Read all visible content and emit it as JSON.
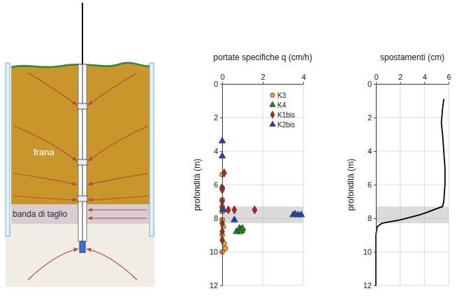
{
  "diagram": {
    "landslide_label": "frana",
    "shear_band_label": "banda di taglio"
  },
  "chart_data": [
    {
      "type": "scatter",
      "x_label": "portate specifiche q (cm/h)",
      "y_label": "profondità (m)",
      "xlim": [
        0,
        4
      ],
      "xticks": [
        0,
        2,
        4
      ],
      "ylim": [
        0,
        12
      ],
      "yticks": [
        0,
        2,
        4,
        6,
        8,
        10,
        12
      ],
      "grid": true,
      "legend": "top-right",
      "shear_band": [
        7.3,
        8.3
      ],
      "series": [
        {
          "name": "K3",
          "color": "#f0a030",
          "marker": "circle",
          "x": [
            0,
            0,
            0,
            0,
            0,
            0,
            0.05,
            0,
            0.1,
            0.15,
            0,
            0.8,
            0.9,
            0.95,
            1.0
          ],
          "y": [
            5.4,
            6.2,
            6.9,
            7.3,
            7.6,
            8.1,
            8.5,
            9.0,
            9.5,
            9.8,
            10.0,
            8.8,
            8.6,
            8.8,
            8.7
          ]
        },
        {
          "name": "K4",
          "color": "#1e8a1e",
          "marker": "triangle",
          "x": [
            0.7,
            0.85,
            0.9,
            0.95,
            1.0
          ],
          "y": [
            8.8,
            8.6,
            8.7,
            8.75,
            8.6
          ]
        },
        {
          "name": "K1bis",
          "color": "#c0201a",
          "marker": "diamond",
          "x": [
            0.1,
            0,
            0,
            0,
            0,
            0.3,
            0.6,
            1.6,
            0,
            0,
            0
          ],
          "y": [
            5.3,
            6.2,
            6.3,
            7.0,
            7.4,
            7.5,
            7.5,
            7.5,
            8.3,
            8.8,
            9.3
          ]
        },
        {
          "name": "K2bis",
          "color": "#2040c0",
          "marker": "triangle",
          "x": [
            0,
            0,
            0.05,
            0.6,
            3.5,
            3.6,
            3.75,
            3.9
          ],
          "y": [
            3.4,
            4.3,
            7.5,
            8.1,
            7.8,
            7.75,
            7.8,
            7.8
          ]
        }
      ]
    },
    {
      "type": "line",
      "x_label": "spostamenti (cm)",
      "y_label": "profondità (m)",
      "xlim": [
        0,
        6
      ],
      "xticks": [
        0,
        2,
        4,
        6
      ],
      "ylim": [
        0,
        12
      ],
      "yticks": [
        0,
        2,
        4,
        6,
        8,
        10,
        12
      ],
      "grid": true,
      "shear_band": [
        7.3,
        8.3
      ],
      "color": "#000000",
      "x": [
        5.6,
        5.5,
        5.4,
        5.5,
        5.6,
        5.7,
        5.7,
        5.6,
        5.5,
        4.0,
        3.6,
        2.0,
        0.5,
        0.1,
        0,
        0,
        0,
        0
      ],
      "y": [
        0.9,
        1.5,
        2.3,
        3,
        4,
        5,
        6,
        7,
        7.3,
        7.7,
        7.8,
        8.1,
        8.3,
        8.5,
        9,
        10,
        11,
        12
      ]
    }
  ]
}
